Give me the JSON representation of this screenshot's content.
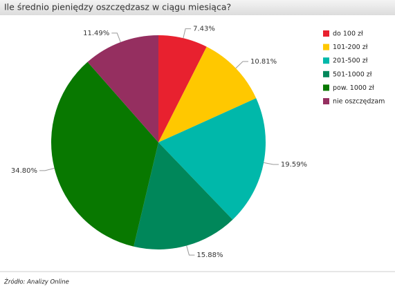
{
  "chart_data": {
    "type": "pie",
    "title": "Ile średnio pieniędzy oszczędzasz w ciągu miesiąca?",
    "source": "Źródło: Analizy Online",
    "categories": [
      "do 100 zł",
      "101-200 zł",
      "201-500 zł",
      "501-1000 zł",
      "pow. 1000 zł",
      "nie oszczędzam"
    ],
    "values": [
      7.43,
      10.81,
      19.59,
      15.88,
      34.8,
      11.49
    ],
    "value_labels": [
      "7.43%",
      "10.81%",
      "19.59%",
      "15.88%",
      "34.80%",
      "11.49%"
    ],
    "colors": [
      "#e8212f",
      "#ffc800",
      "#00b8aa",
      "#00875a",
      "#087800",
      "#952f60"
    ],
    "legend": "top-right"
  }
}
